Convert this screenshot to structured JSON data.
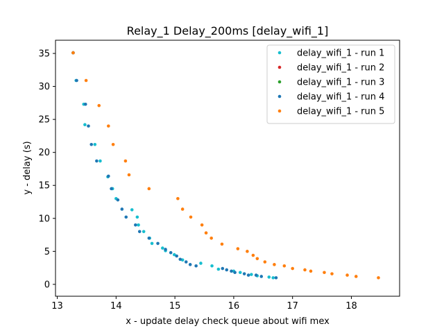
{
  "chart_data": {
    "type": "scatter",
    "title": "Relay_1 Delay_200ms [delay_wifi_1]",
    "xlabel": "x - update delay check queue about wifi mex",
    "ylabel": "y - delay (s)",
    "xlim": [
      12.97,
      18.82
    ],
    "ylim": [
      -1.8,
      37.0
    ],
    "xticks": [
      13,
      14,
      15,
      16,
      17,
      18
    ],
    "yticks": [
      0,
      5,
      10,
      15,
      20,
      25,
      30,
      35
    ],
    "grid": false,
    "legend_position": "top-right",
    "series": [
      {
        "name": "delay_wifi_1 - run 1",
        "color": "#17becf",
        "points": [
          [
            13.27,
            35.1
          ],
          [
            13.32,
            30.9
          ],
          [
            13.45,
            27.3
          ],
          [
            13.47,
            24.2
          ],
          [
            13.64,
            21.2
          ],
          [
            13.73,
            18.7
          ],
          [
            13.86,
            16.3
          ],
          [
            13.94,
            14.5
          ],
          [
            14.0,
            13.0
          ],
          [
            14.27,
            11.3
          ],
          [
            14.36,
            10.2
          ],
          [
            14.38,
            9.0
          ],
          [
            14.47,
            8.0
          ],
          [
            14.57,
            7.0
          ],
          [
            14.61,
            6.2
          ],
          [
            14.79,
            5.5
          ],
          [
            14.84,
            5.1
          ],
          [
            14.99,
            4.5
          ],
          [
            15.13,
            3.7
          ],
          [
            15.44,
            3.2
          ],
          [
            15.63,
            2.8
          ],
          [
            15.74,
            2.3
          ],
          [
            16.0,
            2.0
          ],
          [
            16.11,
            1.8
          ],
          [
            16.3,
            1.5
          ],
          [
            16.4,
            1.3
          ],
          [
            16.6,
            1.1
          ],
          [
            16.67,
            1.0
          ]
        ]
      },
      {
        "name": "delay_wifi_1 - run 2",
        "color": "#d62728",
        "points": [
          [
            13.27,
            35.1
          ]
        ]
      },
      {
        "name": "delay_wifi_1 - run 3",
        "color": "#2ca02c",
        "points": [
          [
            13.27,
            35.1
          ]
        ]
      },
      {
        "name": "delay_wifi_1 - run 4",
        "color": "#1f77b4",
        "points": [
          [
            13.27,
            35.1
          ],
          [
            13.33,
            30.9
          ],
          [
            13.48,
            27.3
          ],
          [
            13.53,
            24.0
          ],
          [
            13.58,
            21.2
          ],
          [
            13.67,
            18.7
          ],
          [
            13.87,
            16.4
          ],
          [
            13.92,
            14.5
          ],
          [
            14.03,
            12.8
          ],
          [
            14.1,
            11.4
          ],
          [
            14.17,
            10.2
          ],
          [
            14.33,
            9.0
          ],
          [
            14.4,
            8.0
          ],
          [
            14.56,
            7.0
          ],
          [
            14.71,
            6.2
          ],
          [
            14.84,
            5.3
          ],
          [
            14.93,
            4.8
          ],
          [
            15.03,
            4.3
          ],
          [
            15.09,
            3.8
          ],
          [
            15.19,
            3.4
          ],
          [
            15.26,
            3.0
          ],
          [
            15.36,
            2.8
          ],
          [
            15.81,
            2.4
          ],
          [
            15.88,
            2.2
          ],
          [
            15.96,
            2.0
          ],
          [
            16.02,
            1.8
          ],
          [
            16.18,
            1.6
          ],
          [
            16.25,
            1.4
          ],
          [
            16.38,
            1.4
          ],
          [
            16.47,
            1.2
          ],
          [
            16.72,
            1.0
          ]
        ]
      },
      {
        "name": "delay_wifi_1 - run 5",
        "color": "#ff7f0e",
        "points": [
          [
            13.27,
            35.1
          ],
          [
            13.49,
            30.9
          ],
          [
            13.71,
            27.1
          ],
          [
            13.87,
            24.0
          ],
          [
            13.95,
            21.2
          ],
          [
            14.16,
            18.7
          ],
          [
            14.22,
            16.6
          ],
          [
            14.56,
            14.5
          ],
          [
            15.05,
            13.0
          ],
          [
            15.13,
            11.4
          ],
          [
            15.27,
            10.2
          ],
          [
            15.46,
            9.0
          ],
          [
            15.53,
            7.8
          ],
          [
            15.62,
            7.0
          ],
          [
            15.8,
            6.1
          ],
          [
            16.07,
            5.4
          ],
          [
            16.23,
            5.0
          ],
          [
            16.33,
            4.4
          ],
          [
            16.4,
            3.9
          ],
          [
            16.53,
            3.4
          ],
          [
            16.69,
            3.0
          ],
          [
            16.86,
            2.8
          ],
          [
            17.0,
            2.4
          ],
          [
            17.21,
            2.2
          ],
          [
            17.31,
            2.0
          ],
          [
            17.54,
            1.8
          ],
          [
            17.67,
            1.6
          ],
          [
            17.93,
            1.4
          ],
          [
            18.08,
            1.2
          ],
          [
            18.46,
            1.0
          ]
        ]
      }
    ]
  }
}
